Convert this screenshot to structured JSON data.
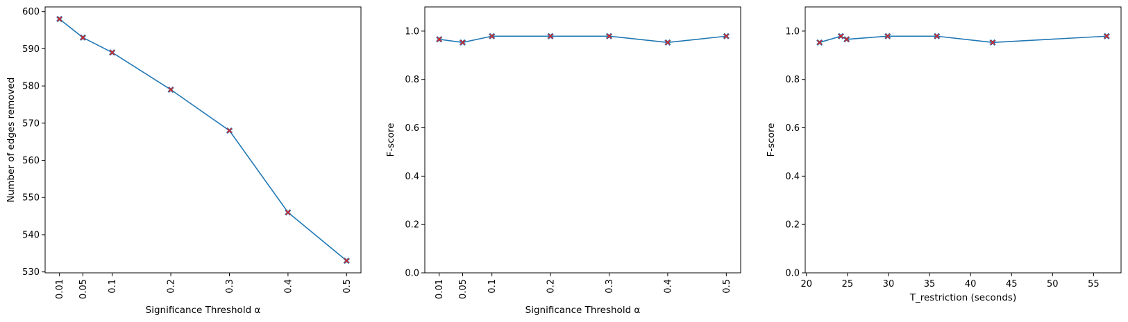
{
  "colors": {
    "line": "#1f77b4",
    "marker": "#d62728",
    "axes": "#000000"
  },
  "chart_data": [
    {
      "type": "line",
      "xlabel": "Significance Threshold α",
      "ylabel": "Number of edges removed",
      "x": [
        0.01,
        0.05,
        0.1,
        0.2,
        0.3,
        0.4,
        0.5
      ],
      "xticklabels": [
        "0.01",
        "0.05",
        "0.1",
        "0.2",
        "0.3",
        "0.4",
        "0.5"
      ],
      "xtick_rotation": "vertical",
      "y": [
        598,
        593,
        589,
        579,
        568,
        546,
        533
      ],
      "yticks": [
        "530",
        "540",
        "550",
        "560",
        "570",
        "580",
        "590",
        "600"
      ],
      "xlim": [
        -0.0145,
        0.5245
      ],
      "ylim": [
        529.75,
        601.25
      ],
      "marker": "X",
      "grid": false
    },
    {
      "type": "line",
      "xlabel": "Significance Threshold α",
      "ylabel": "F-score",
      "x": [
        0.01,
        0.05,
        0.1,
        0.2,
        0.3,
        0.4,
        0.5
      ],
      "xticklabels": [
        "0.01",
        "0.05",
        "0.1",
        "0.2",
        "0.3",
        "0.4",
        "0.5"
      ],
      "xtick_rotation": "vertical",
      "y": [
        0.966,
        0.953,
        0.979,
        0.979,
        0.979,
        0.953,
        0.979
      ],
      "yticks": [
        "0.0",
        "0.2",
        "0.4",
        "0.6",
        "0.8",
        "1.0"
      ],
      "xlim": [
        -0.0145,
        0.5245
      ],
      "ylim": [
        0.0,
        1.1
      ],
      "marker": "X",
      "grid": false
    },
    {
      "type": "line",
      "xlabel": "T_restriction (seconds)",
      "ylabel": "F-score",
      "x": [
        21.6,
        24.2,
        24.9,
        29.9,
        35.9,
        42.7,
        56.6
      ],
      "y": [
        0.953,
        0.979,
        0.966,
        0.979,
        0.979,
        0.953,
        0.979
      ],
      "xticks": [
        "20",
        "25",
        "30",
        "35",
        "40",
        "45",
        "50",
        "55"
      ],
      "yticks": [
        "0.0",
        "0.2",
        "0.4",
        "0.6",
        "0.8",
        "1.0"
      ],
      "xlim": [
        19.85,
        58.35
      ],
      "ylim": [
        0.0,
        1.1
      ],
      "marker": "X",
      "grid": false
    }
  ]
}
